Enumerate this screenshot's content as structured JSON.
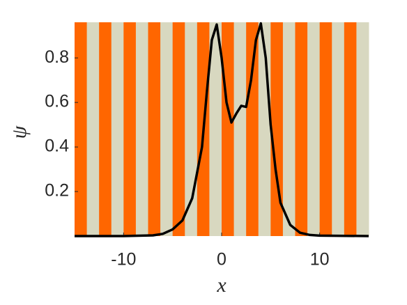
{
  "chart_data": {
    "type": "line",
    "xlabel": "x",
    "ylabel": "ψ",
    "x": [
      -15,
      -10,
      -7,
      -6,
      -5,
      -4,
      -3,
      -2,
      -1.5,
      -1,
      -0.5,
      0,
      0.5,
      1,
      1.5,
      2,
      2.5,
      3,
      3.5,
      4,
      4.5,
      5,
      5.5,
      6,
      7,
      8,
      9,
      10,
      15
    ],
    "series": [
      {
        "color": "#000000",
        "values": [
          0,
          0,
          0.003,
          0.01,
          0.03,
          0.07,
          0.17,
          0.4,
          0.65,
          0.88,
          0.95,
          0.8,
          0.6,
          0.51,
          0.55,
          0.585,
          0.58,
          0.7,
          0.88,
          0.955,
          0.8,
          0.5,
          0.3,
          0.15,
          0.05,
          0.015,
          0.005,
          0.002,
          0
        ]
      }
    ],
    "xlim": [
      -15,
      15
    ],
    "ylim": [
      0,
      0.96
    ],
    "xticks": [
      -10,
      0,
      10
    ],
    "yticks": [
      0.2,
      0.4,
      0.6,
      0.8
    ],
    "stripes": {
      "colors": [
        "#ff6600",
        "#d8d8c0"
      ],
      "period": 2.5
    }
  }
}
